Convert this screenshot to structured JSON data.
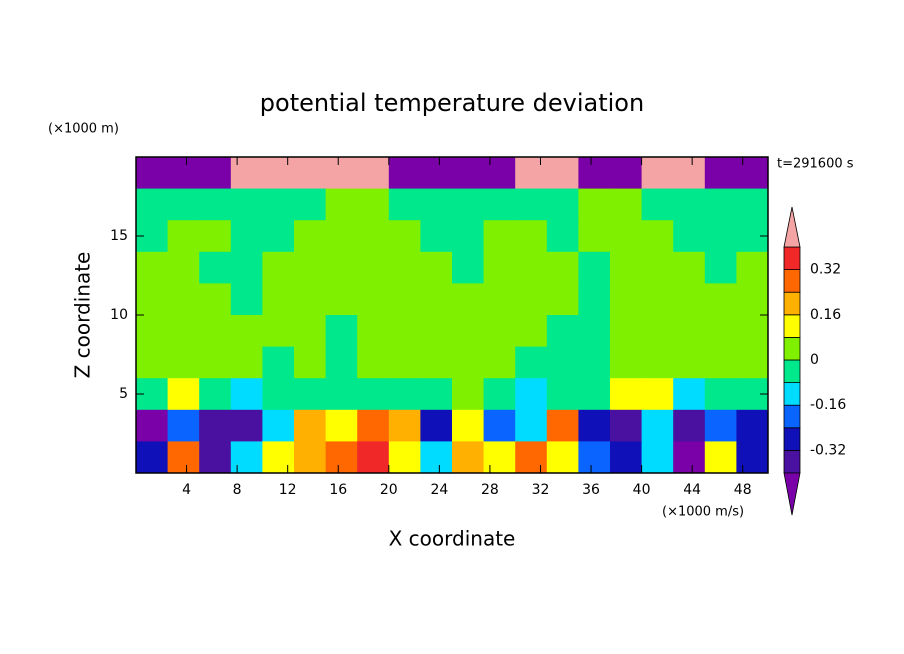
{
  "chart_data": {
    "type": "contour",
    "title": "potential temperature deviation",
    "x_label": "X coordinate",
    "y_label": "Z coordinate",
    "x_unit": "(×1000 m/s)",
    "y_unit": "(×1000 m)",
    "time_label": "t=291600 s",
    "xlim": [
      0,
      50
    ],
    "ylim": [
      0,
      20
    ],
    "xticks": [
      4,
      8,
      12,
      16,
      20,
      24,
      28,
      32,
      36,
      40,
      44,
      48
    ],
    "yticks": [
      5,
      10,
      15
    ],
    "levels": [
      -0.4,
      -0.32,
      -0.24,
      -0.16,
      -0.08,
      0,
      0.08,
      0.16,
      0.24,
      0.32,
      0.4
    ],
    "colors": [
      "#7a00a8",
      "#4a10a0",
      "#1010b8",
      "#0a64ff",
      "#00dcff",
      "#00e88c",
      "#7ff000",
      "#ffff00",
      "#ffb000",
      "#ff6800",
      "#f02828",
      "#f4a4a4"
    ],
    "colorbar_ticks": [
      0.32,
      0.16,
      0,
      -0.16,
      -0.32
    ],
    "x": [
      1.25,
      3.75,
      6.25,
      8.75,
      11.25,
      13.75,
      16.25,
      18.75,
      21.25,
      23.75,
      26.25,
      28.75,
      31.25,
      33.75,
      36.25,
      38.75,
      41.25,
      43.75,
      46.25,
      48.75
    ],
    "y": [
      19,
      17,
      15,
      13,
      11,
      9,
      7,
      5,
      3,
      1
    ],
    "z": [
      [
        -0.5,
        -0.5,
        -0.5,
        0.5,
        0.5,
        0.5,
        0.5,
        0.5,
        -0.5,
        -0.5,
        -0.5,
        -0.5,
        0.5,
        0.5,
        -0.5,
        -0.5,
        0.5,
        0.5,
        -0.5,
        -0.5
      ],
      [
        -0.04,
        -0.04,
        -0.04,
        -0.04,
        -0.04,
        -0.04,
        0.04,
        0.04,
        -0.04,
        -0.04,
        -0.04,
        -0.04,
        -0.04,
        -0.04,
        0.04,
        0.04,
        -0.04,
        -0.04,
        -0.04,
        -0.04
      ],
      [
        -0.04,
        0.04,
        0.04,
        -0.04,
        -0.04,
        0.04,
        0.04,
        0.04,
        0.04,
        -0.04,
        -0.04,
        0.04,
        0.04,
        -0.04,
        0.04,
        0.04,
        0.04,
        -0.04,
        -0.04,
        -0.04
      ],
      [
        0.04,
        0.04,
        -0.04,
        -0.04,
        0.04,
        0.04,
        0.04,
        0.04,
        0.04,
        0.04,
        -0.04,
        0.04,
        0.04,
        0.04,
        -0.04,
        0.04,
        0.04,
        0.04,
        -0.04,
        0.04
      ],
      [
        0.04,
        0.04,
        0.04,
        -0.04,
        0.04,
        0.04,
        0.04,
        0.04,
        0.04,
        0.04,
        0.04,
        0.04,
        0.04,
        0.04,
        -0.04,
        0.04,
        0.04,
        0.04,
        0.04,
        0.04
      ],
      [
        0.04,
        0.04,
        0.04,
        0.04,
        0.04,
        0.04,
        -0.04,
        0.04,
        0.04,
        0.04,
        0.04,
        0.04,
        0.04,
        -0.04,
        -0.04,
        0.04,
        0.04,
        0.04,
        0.04,
        0.04
      ],
      [
        0.04,
        0.04,
        0.04,
        0.04,
        -0.04,
        0.04,
        -0.04,
        0.04,
        0.04,
        0.04,
        0.04,
        0.04,
        -0.04,
        -0.04,
        -0.04,
        0.04,
        0.04,
        0.04,
        0.04,
        0.04
      ],
      [
        -0.04,
        0.12,
        -0.04,
        -0.12,
        -0.04,
        -0.04,
        -0.04,
        -0.04,
        -0.04,
        -0.04,
        0.04,
        -0.04,
        -0.12,
        -0.04,
        -0.04,
        0.12,
        0.12,
        -0.12,
        -0.04,
        -0.04
      ],
      [
        -0.45,
        -0.2,
        -0.35,
        -0.4,
        -0.1,
        0.2,
        0.1,
        0.3,
        0.2,
        -0.3,
        0.1,
        -0.2,
        -0.1,
        0.25,
        -0.3,
        -0.35,
        -0.1,
        -0.4,
        -0.2,
        -0.3
      ],
      [
        -0.3,
        0.3,
        -0.4,
        -0.1,
        0.1,
        0.2,
        0.3,
        0.35,
        0.1,
        -0.1,
        0.2,
        0.15,
        0.3,
        0.1,
        -0.2,
        -0.3,
        -0.1,
        -0.45,
        0.1,
        -0.3
      ]
    ]
  }
}
